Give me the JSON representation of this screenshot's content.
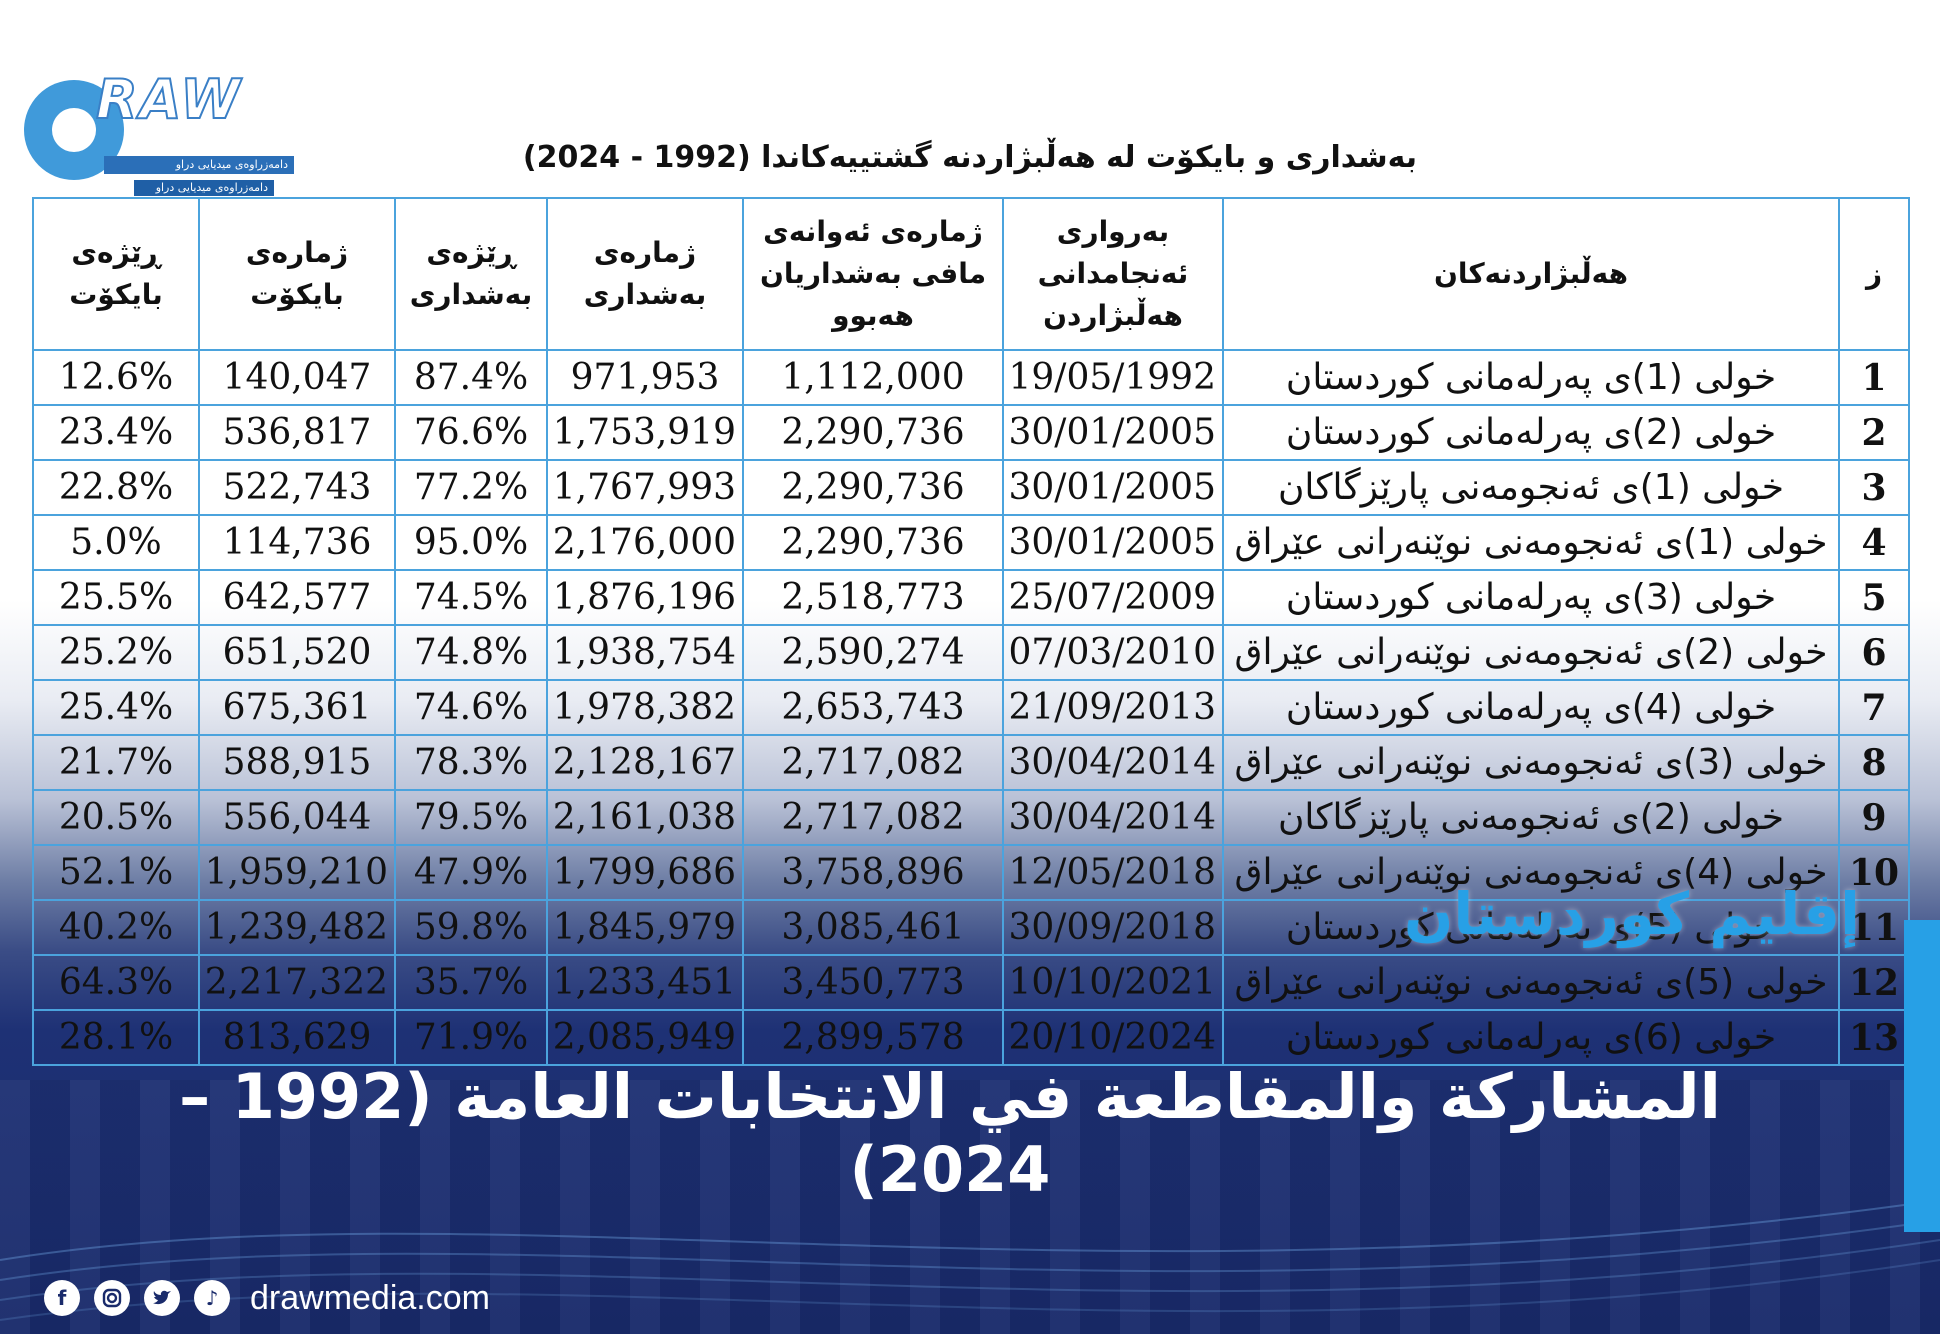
{
  "logo": {
    "word": "RAW",
    "tag1": "دامەزراوەی میدیایی دراو",
    "tag2": "دامەزراوەی میدیایی دراو"
  },
  "document": {
    "title": "بەشداری و بایكۆت لە هەڵبژاردنە گشتییەكاندا (1992 - 2024)",
    "headers": {
      "no": "ز",
      "election": "هەڵبژاردنەكان",
      "date": "بەرواری ئەنجامدانی هەڵبژاردن",
      "eligible": "ژمارەی ئەوانەی مافی بەشداریان هەبوو",
      "participants": "ژمارەی بەشداری",
      "participation_rate": "ڕێژەی بەشداری",
      "boycotters": "ژمارەی بایكۆت",
      "boycott_rate": "ڕێژەی بایكۆت"
    },
    "rows": [
      {
        "no": "1",
        "election": "خولی (1)ی پەرلەمانی كوردستان",
        "date": "19/05/1992",
        "eligible": "1,112,000",
        "participants": "971,953",
        "participation_rate": "87.4%",
        "boycotters": "140,047",
        "boycott_rate": "12.6%"
      },
      {
        "no": "2",
        "election": "خولی (2)ی پەرلەمانی كوردستان",
        "date": "30/01/2005",
        "eligible": "2,290,736",
        "participants": "1,753,919",
        "participation_rate": "76.6%",
        "boycotters": "536,817",
        "boycott_rate": "23.4%"
      },
      {
        "no": "3",
        "election": "خولی (1)ی ئەنجومەنی پارێزگاكان",
        "date": "30/01/2005",
        "eligible": "2,290,736",
        "participants": "1,767,993",
        "participation_rate": "77.2%",
        "boycotters": "522,743",
        "boycott_rate": "22.8%"
      },
      {
        "no": "4",
        "election": "خولی (1)ی ئەنجومەنی نوێنەرانی عێراق",
        "date": "30/01/2005",
        "eligible": "2,290,736",
        "participants": "2,176,000",
        "participation_rate": "95.0%",
        "boycotters": "114,736",
        "boycott_rate": "5.0%"
      },
      {
        "no": "5",
        "election": "خولی (3)ی پەرلەمانی كوردستان",
        "date": "25/07/2009",
        "eligible": "2,518,773",
        "participants": "1,876,196",
        "participation_rate": "74.5%",
        "boycotters": "642,577",
        "boycott_rate": "25.5%"
      },
      {
        "no": "6",
        "election": "خولی (2)ی ئەنجومەنی نوێنەرانی عێراق",
        "date": "07/03/2010",
        "eligible": "2,590,274",
        "participants": "1,938,754",
        "participation_rate": "74.8%",
        "boycotters": "651,520",
        "boycott_rate": "25.2%"
      },
      {
        "no": "7",
        "election": "خولی (4)ی پەرلەمانی كوردستان",
        "date": "21/09/2013",
        "eligible": "2,653,743",
        "participants": "1,978,382",
        "participation_rate": "74.6%",
        "boycotters": "675,361",
        "boycott_rate": "25.4%"
      },
      {
        "no": "8",
        "election": "خولی (3)ی ئەنجومەنی نوێنەرانی عێراق",
        "date": "30/04/2014",
        "eligible": "2,717,082",
        "participants": "2,128,167",
        "participation_rate": "78.3%",
        "boycotters": "588,915",
        "boycott_rate": "21.7%"
      },
      {
        "no": "9",
        "election": "خولی (2)ی ئەنجومەنی پارێزگاكان",
        "date": "30/04/2014",
        "eligible": "2,717,082",
        "participants": "2,161,038",
        "participation_rate": "79.5%",
        "boycotters": "556,044",
        "boycott_rate": "20.5%"
      },
      {
        "no": "10",
        "election": "خولی (4)ی ئەنجومەنی نوێنەرانی عێراق",
        "date": "12/05/2018",
        "eligible": "3,758,896",
        "participants": "1,799,686",
        "participation_rate": "47.9%",
        "boycotters": "1,959,210",
        "boycott_rate": "52.1%"
      },
      {
        "no": "11",
        "election": "خولی (5)ی پەرلەمانی كوردستان",
        "date": "30/09/2018",
        "eligible": "3,085,461",
        "participants": "1,845,979",
        "participation_rate": "59.8%",
        "boycotters": "1,239,482",
        "boycott_rate": "40.2%"
      },
      {
        "no": "12",
        "election": "خولی (5)ی ئەنجومەنی نوێنەرانی عێراق",
        "date": "10/10/2021",
        "eligible": "3,450,773",
        "participants": "1,233,451",
        "participation_rate": "35.7%",
        "boycotters": "2,217,322",
        "boycott_rate": "64.3%"
      },
      {
        "no": "13",
        "election": "خولی (6)ی پەرلەمانی كوردستان",
        "date": "20/10/2024",
        "eligible": "2,899,578",
        "participants": "2,085,949",
        "participation_rate": "71.9%",
        "boycotters": "813,629",
        "boycott_rate": "28.1%"
      }
    ]
  },
  "overlay": {
    "subtitle": "إقليم كوردستان",
    "headline": "المشاركة والمقاطعة في الانتخابات العامة (1992 – 2024)"
  },
  "footer": {
    "site": "drawmedia.com",
    "icons": [
      "facebook-icon",
      "instagram-icon",
      "twitter-icon",
      "tiktok-icon"
    ]
  },
  "colors": {
    "accent": "#27a0e6",
    "table_border": "#4ba3dd",
    "navy": "#1a2b6b"
  }
}
